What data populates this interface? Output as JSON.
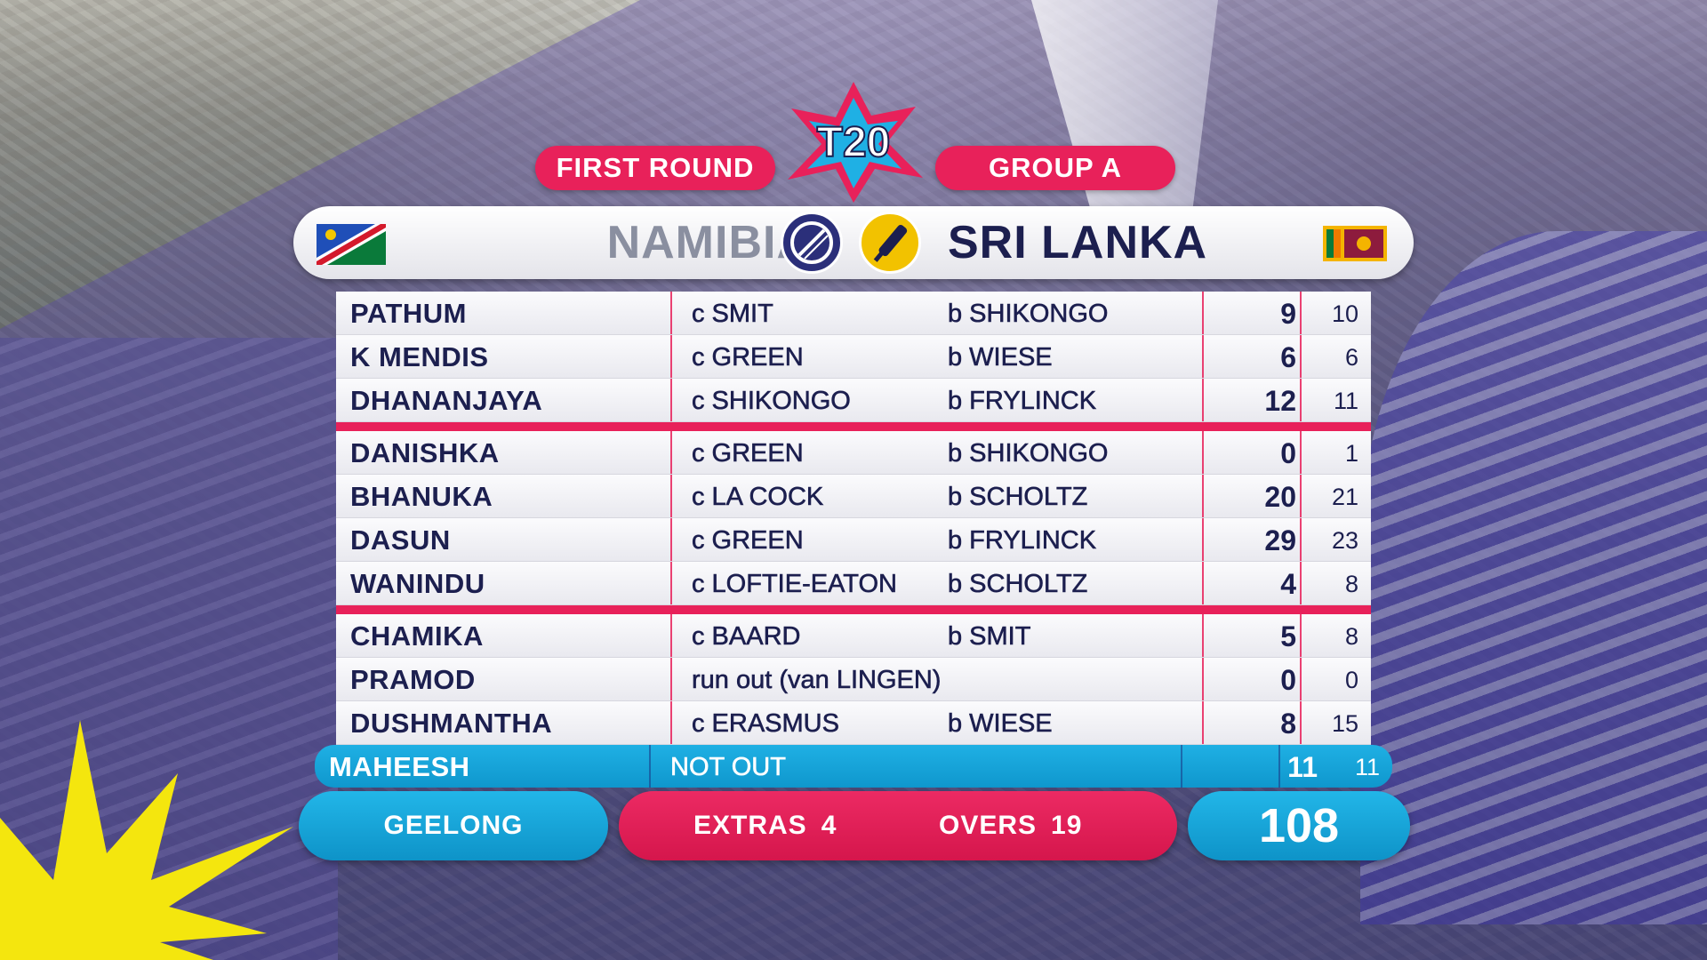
{
  "match": {
    "round": "FIRST ROUND",
    "group": "GROUP A",
    "bowling_team": "NAMIBIA",
    "batting_team": "SRI LANKA"
  },
  "batting": [
    {
      "name": "PATHUM",
      "dismissal": "c SMIT",
      "bowler": "b SHIKONGO",
      "runs": "9",
      "balls": "10"
    },
    {
      "name": "K MENDIS",
      "dismissal": "c GREEN",
      "bowler": "b WIESE",
      "runs": "6",
      "balls": "6"
    },
    {
      "name": "DHANANJAYA",
      "dismissal": "c SHIKONGO",
      "bowler": "b FRYLINCK",
      "runs": "12",
      "balls": "11"
    },
    {
      "name": "DANISHKA",
      "dismissal": "c GREEN",
      "bowler": "b SHIKONGO",
      "runs": "0",
      "balls": "1"
    },
    {
      "name": "BHANUKA",
      "dismissal": "c LA COCK",
      "bowler": "b SCHOLTZ",
      "runs": "20",
      "balls": "21"
    },
    {
      "name": "DASUN",
      "dismissal": "c GREEN",
      "bowler": "b FRYLINCK",
      "runs": "29",
      "balls": "23"
    },
    {
      "name": "WANINDU",
      "dismissal": "c LOFTIE-EATON",
      "bowler": "b SCHOLTZ",
      "runs": "4",
      "balls": "8"
    },
    {
      "name": "CHAMIKA",
      "dismissal": "c BAARD",
      "bowler": "b SMIT",
      "runs": "5",
      "balls": "8"
    },
    {
      "name": "PRAMOD",
      "dismissal": "run out (van LINGEN)",
      "bowler": "",
      "runs": "0",
      "balls": "0"
    },
    {
      "name": "DUSHMANTHA",
      "dismissal": "c ERASMUS",
      "bowler": "b WIESE",
      "runs": "8",
      "balls": "15"
    },
    {
      "name": "MAHEESH",
      "dismissal": "NOT OUT",
      "bowler": "",
      "runs": "11",
      "balls": "11"
    }
  ],
  "footer": {
    "venue": "GEELONG",
    "extras_label": "EXTRAS",
    "extras_value": "4",
    "overs_label": "OVERS",
    "overs_value": "19",
    "total": "108"
  },
  "colors": {
    "pink": "#e8215a",
    "cyan": "#1fb0e4",
    "navy": "#1c1f4f"
  },
  "icons": [
    "t20-logo",
    "namibia-flag-icon",
    "bowling-ball-icon",
    "cricket-bat-icon",
    "sri-lanka-flag-icon",
    "starburst-graphic"
  ]
}
